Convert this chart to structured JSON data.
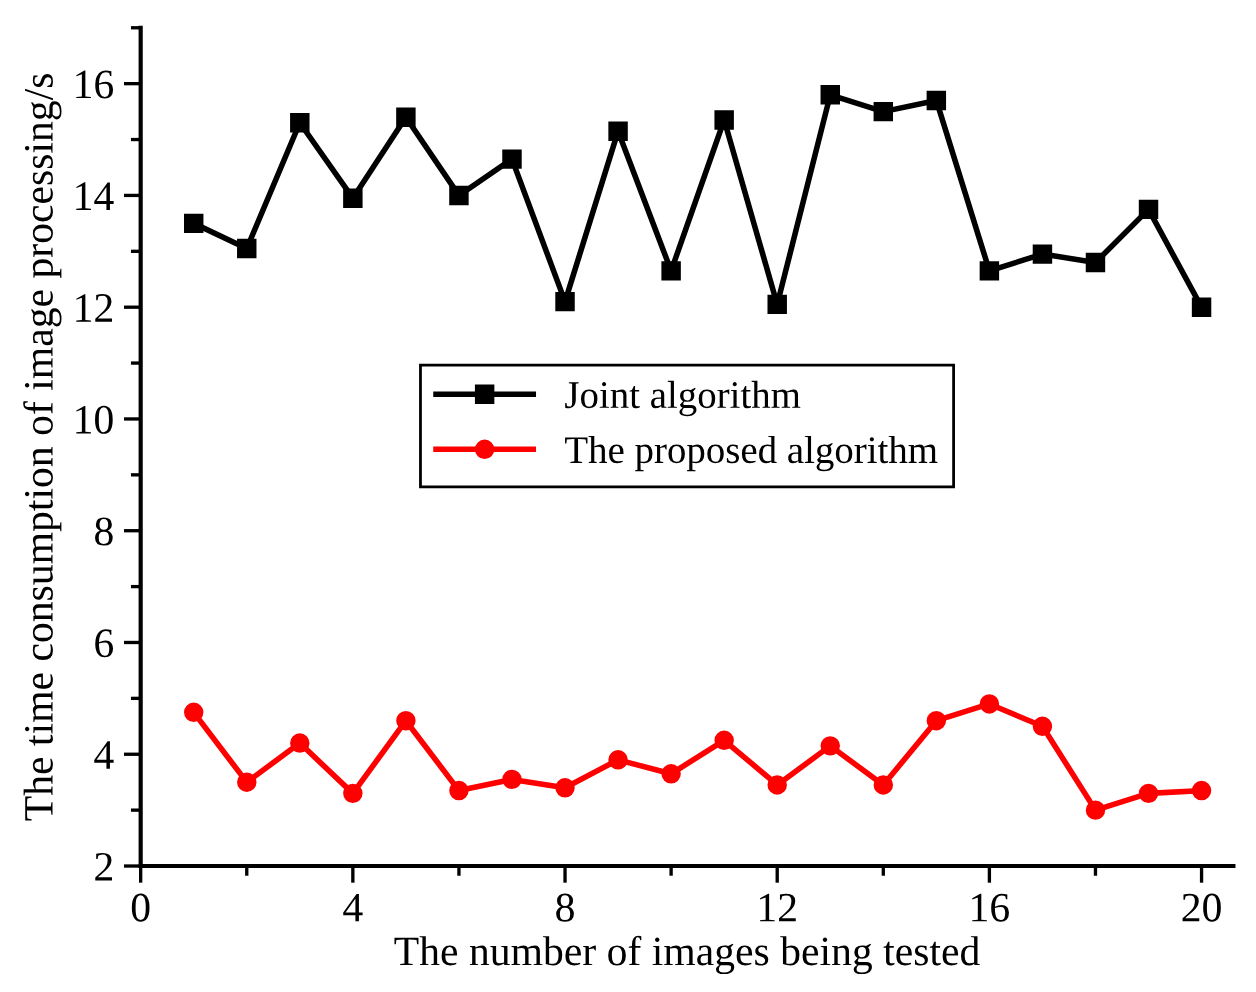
{
  "chart_data": {
    "type": "line",
    "xlabel": "The number of images being tested",
    "ylabel": "The time consumption of image processing/s",
    "x": [
      1,
      2,
      3,
      4,
      5,
      6,
      7,
      8,
      9,
      10,
      11,
      12,
      13,
      14,
      15,
      16,
      17,
      18,
      19,
      20
    ],
    "series": [
      {
        "name": "Joint algorithm",
        "color": "#000000",
        "marker": "square",
        "values": [
          13.5,
          13.05,
          15.3,
          13.95,
          15.4,
          14.0,
          14.65,
          12.1,
          15.15,
          12.65,
          15.35,
          12.05,
          15.8,
          15.5,
          15.7,
          12.65,
          12.95,
          12.8,
          13.75,
          12.0
        ]
      },
      {
        "name": "The proposed algorithm",
        "color": "#ff0000",
        "marker": "circle",
        "values": [
          4.75,
          3.5,
          4.2,
          3.3,
          4.6,
          3.35,
          3.55,
          3.4,
          3.9,
          3.65,
          4.25,
          3.45,
          4.15,
          3.45,
          4.6,
          4.9,
          4.5,
          3.0,
          3.3,
          3.35
        ]
      }
    ],
    "xlim": [
      0,
      20.6
    ],
    "ylim": [
      2,
      17
    ],
    "xticks": [
      0,
      4,
      8,
      12,
      16,
      20
    ],
    "yticks": [
      2,
      4,
      6,
      8,
      10,
      12,
      14,
      16
    ],
    "legend": "center",
    "grid": false,
    "line_style": "solid"
  }
}
